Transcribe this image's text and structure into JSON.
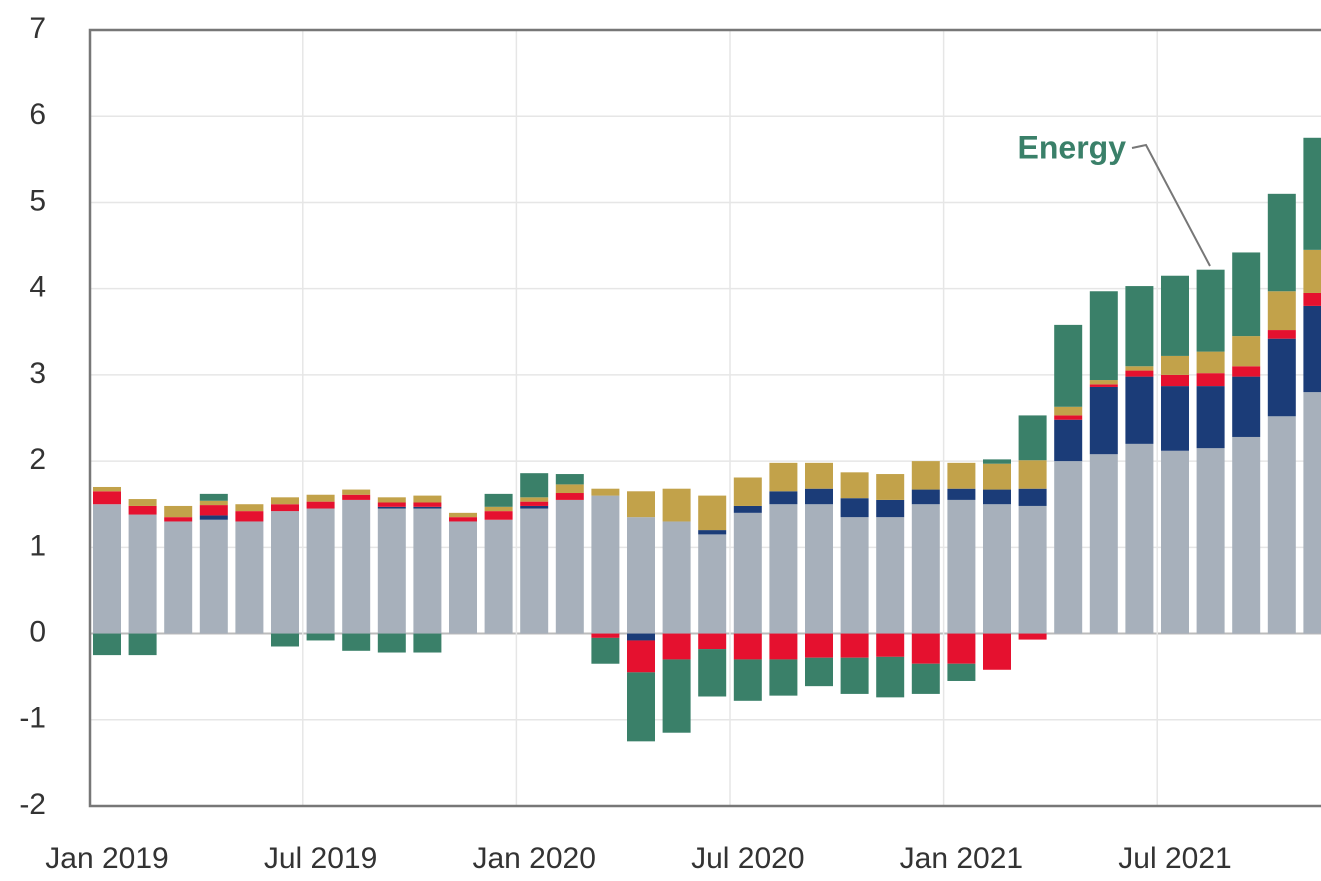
{
  "chart_data": {
    "type": "stacked_bar",
    "categories": [
      "Jan 2019",
      null,
      null,
      null,
      null,
      null,
      "Jul 2019",
      null,
      null,
      null,
      null,
      null,
      "Jan 2020",
      null,
      null,
      null,
      null,
      null,
      "Jul 2020",
      null,
      null,
      null,
      null,
      null,
      "Jan 2021",
      null,
      null,
      null,
      null,
      null,
      "Jul 2021",
      null,
      null,
      null,
      null
    ],
    "series": [
      {
        "color": "#a7b0bb",
        "values": [
          1.5,
          1.38,
          1.3,
          1.32,
          1.3,
          1.42,
          1.45,
          1.55,
          1.45,
          1.45,
          1.3,
          1.32,
          1.45,
          1.55,
          1.6,
          1.35,
          1.3,
          1.15,
          1.4,
          1.5,
          1.5,
          1.35,
          1.35,
          1.5,
          1.55,
          1.5,
          1.48,
          2.0,
          2.08,
          2.2,
          2.12,
          2.15,
          2.28,
          2.52,
          2.8
        ]
      },
      {
        "color": "#1b3c78",
        "values": [
          0,
          0,
          0,
          0.05,
          0,
          0,
          0,
          0,
          0.02,
          0.02,
          0,
          0,
          0.03,
          0,
          0,
          -0.08,
          0,
          0.05,
          0.08,
          0.15,
          0.18,
          0.22,
          0.2,
          0.17,
          0.13,
          0.17,
          0.2,
          0.48,
          0.78,
          0.78,
          0.75,
          0.72,
          0.7,
          0.9,
          1.0
        ]
      },
      {
        "color": "#e5112f",
        "values": [
          0.15,
          0.1,
          0.05,
          0.12,
          0.12,
          0.08,
          0.08,
          0.06,
          0.05,
          0.05,
          0.05,
          0.1,
          0.05,
          0.08,
          -0.05,
          -0.37,
          -0.3,
          -0.18,
          -0.3,
          -0.3,
          -0.28,
          -0.28,
          -0.27,
          -0.35,
          -0.35,
          -0.42,
          -0.07,
          0.05,
          0.03,
          0.07,
          0.13,
          0.15,
          0.12,
          0.1,
          0.15
        ]
      },
      {
        "color": "#c2a24a",
        "values": [
          0.05,
          0.08,
          0.13,
          0.05,
          0.08,
          0.08,
          0.08,
          0.06,
          0.06,
          0.08,
          0.05,
          0.05,
          0.05,
          0.1,
          0.08,
          0.3,
          0.38,
          0.4,
          0.33,
          0.33,
          0.3,
          0.3,
          0.3,
          0.33,
          0.3,
          0.3,
          0.33,
          0.1,
          0.05,
          0.05,
          0.22,
          0.25,
          0.35,
          0.45,
          0.5
        ]
      },
      {
        "name": "Energy",
        "color": "#3a8069",
        "values": [
          -0.25,
          -0.25,
          0,
          0.08,
          0,
          -0.15,
          -0.08,
          -0.2,
          -0.22,
          -0.22,
          0,
          0.15,
          0.28,
          0.12,
          -0.3,
          -0.8,
          -0.85,
          -0.55,
          -0.48,
          -0.42,
          -0.33,
          -0.42,
          -0.47,
          -0.35,
          -0.2,
          0.05,
          0.52,
          0.95,
          1.03,
          0.93,
          0.93,
          0.95,
          0.97,
          1.13,
          1.3
        ]
      }
    ],
    "ylim": [
      -2,
      7
    ],
    "yticks": [
      -2,
      -1,
      0,
      1,
      2,
      3,
      4,
      5,
      6,
      7
    ],
    "grid": true
  }
}
